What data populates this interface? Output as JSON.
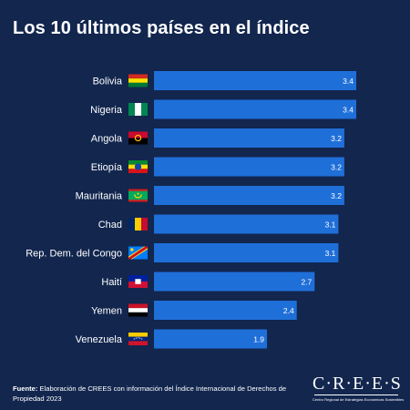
{
  "title": "Los 10 últimos países en el índice",
  "footer": {
    "label": "Fuente:",
    "text": "Elaboración de CREES con información del Índice Internacional de Derechos de Propiedad 2023"
  },
  "logo": {
    "name": "C·R·E·E·S",
    "tagline": "Centro Regional de Estrategias Económicas Sostenibles"
  },
  "colors": {
    "background": "#12264e",
    "bar": "#1f6fd9",
    "text": "#ffffff"
  },
  "chart_data": {
    "type": "bar",
    "orientation": "horizontal",
    "categories": [
      "Bolivia",
      "Nigeria",
      "Angola",
      "Etiopía",
      "Mauritania",
      "Chad",
      "Rep. Dem. del Congo",
      "Haití",
      "Yemen",
      "Venezuela"
    ],
    "values": [
      3.4,
      3.4,
      3.2,
      3.2,
      3.2,
      3.1,
      3.1,
      2.7,
      2.4,
      1.9
    ],
    "value_labels": [
      "3.4",
      "3.4",
      "3.2",
      "3.2",
      "3.2",
      "3.1",
      "3.1",
      "2.7",
      "2.4",
      "1.9"
    ],
    "flags": [
      "bolivia-flag-icon",
      "nigeria-flag-icon",
      "angola-flag-icon",
      "ethiopia-flag-icon",
      "mauritania-flag-icon",
      "chad-flag-icon",
      "drc-flag-icon",
      "haiti-flag-icon",
      "yemen-flag-icon",
      "venezuela-flag-icon"
    ],
    "title": "Los 10 últimos países en el índice",
    "xlabel": "",
    "ylabel": "",
    "xlim": [
      0,
      3.4
    ],
    "grid": false,
    "data_labels": "inside-end"
  }
}
